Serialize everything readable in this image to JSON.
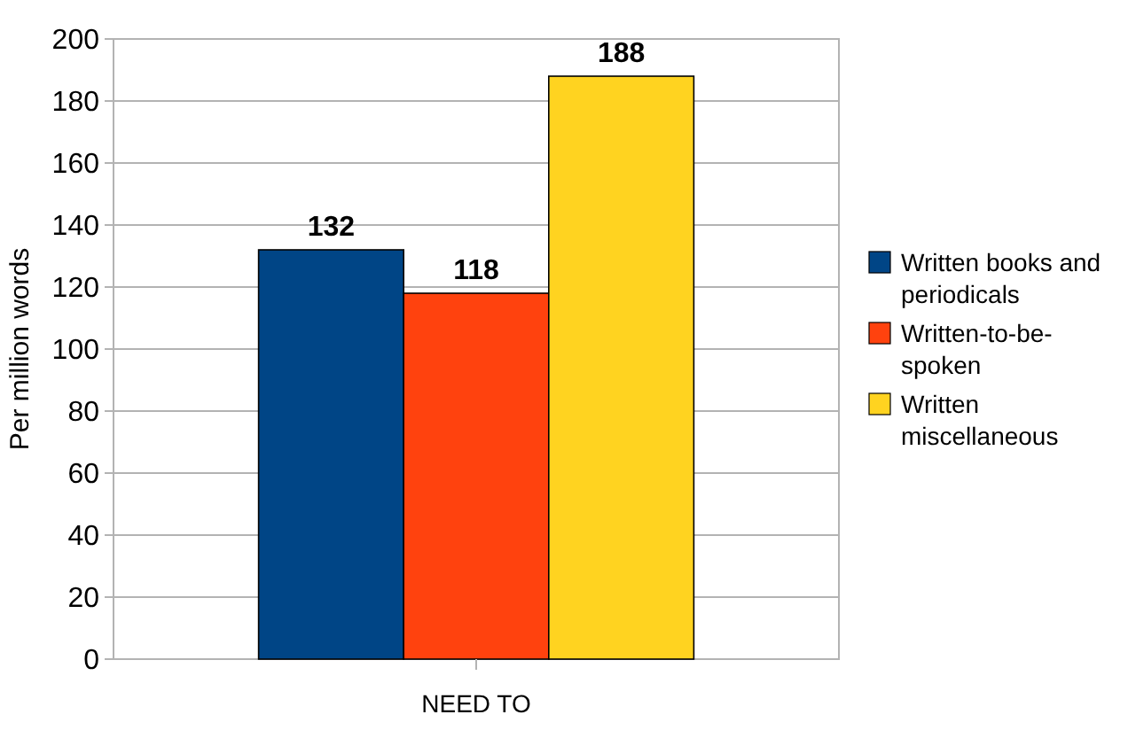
{
  "chart_data": {
    "type": "bar",
    "ylabel": "Per million words",
    "categories": [
      "NEED TO"
    ],
    "series": [
      {
        "name": "Written books and periodicals",
        "color": "#004586",
        "values": [
          132
        ]
      },
      {
        "name": "Written-to-be-spoken",
        "color": "#ff420e",
        "values": [
          118
        ]
      },
      {
        "name": "Written miscellaneous",
        "color": "#ffd320",
        "values": [
          188
        ]
      }
    ],
    "ylim": [
      0,
      200
    ],
    "yticks": [
      0,
      20,
      40,
      60,
      80,
      100,
      120,
      140,
      160,
      180,
      200
    ],
    "grid": "y",
    "legend": "right",
    "data_labels": true
  }
}
